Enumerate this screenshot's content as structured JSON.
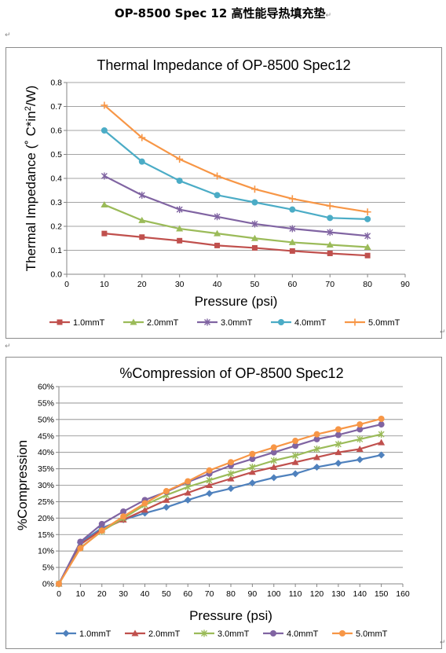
{
  "document": {
    "title": "OP-8500 Spec 12  高性能导热填充垫",
    "paragraph_mark": "↵"
  },
  "chart_data": [
    {
      "type": "line",
      "title": "Thermal Impedance of OP-8500 Spec12",
      "xlabel": "Pressure (psi)",
      "ylabel_parts": [
        "Thermal Impedance (˚ C*in",
        "2",
        "/W)"
      ],
      "xlim": [
        0,
        90
      ],
      "ylim": [
        0,
        0.8
      ],
      "x_ticks": [
        "0",
        "10",
        "20",
        "30",
        "40",
        "50",
        "60",
        "70",
        "80",
        "90"
      ],
      "y_ticks": [
        "0.0",
        "0.1",
        "0.2",
        "0.3",
        "0.4",
        "0.5",
        "0.6",
        "0.7",
        "0.8"
      ],
      "grid": true,
      "legend": "bottom",
      "x": [
        10,
        20,
        30,
        40,
        50,
        60,
        70,
        80
      ],
      "series": [
        {
          "name": "1.0mmT",
          "color": "#C0504D",
          "marker": "square",
          "values": [
            0.17,
            0.155,
            0.14,
            0.12,
            0.11,
            0.097,
            0.087,
            0.078
          ]
        },
        {
          "name": "2.0mmT",
          "color": "#9BBB59",
          "marker": "triangle",
          "values": [
            0.29,
            0.225,
            0.19,
            0.17,
            0.15,
            0.133,
            0.123,
            0.113
          ]
        },
        {
          "name": "3.0mmT",
          "color": "#8064A2",
          "marker": "star",
          "values": [
            0.41,
            0.33,
            0.27,
            0.24,
            0.21,
            0.19,
            0.175,
            0.16
          ]
        },
        {
          "name": "4.0mmT",
          "color": "#4BACC6",
          "marker": "circle",
          "values": [
            0.6,
            0.47,
            0.39,
            0.33,
            0.3,
            0.27,
            0.235,
            0.23
          ]
        },
        {
          "name": "5.0mmT",
          "color": "#F79646",
          "marker": "plus",
          "values": [
            0.705,
            0.57,
            0.48,
            0.41,
            0.355,
            0.315,
            0.285,
            0.26
          ]
        }
      ]
    },
    {
      "type": "line",
      "title": "%Compression of OP-8500 Spec12",
      "xlabel": "Pressure (psi)",
      "ylabel_parts": [
        "%Compression"
      ],
      "xlim": [
        0,
        160
      ],
      "ylim": [
        0,
        60
      ],
      "x_ticks": [
        "0",
        "10",
        "20",
        "30",
        "40",
        "50",
        "60",
        "70",
        "80",
        "90",
        "100",
        "110",
        "120",
        "130",
        "140",
        "150",
        "160"
      ],
      "y_ticks": [
        "0%",
        "5%",
        "10%",
        "15%",
        "20%",
        "25%",
        "30%",
        "35%",
        "40%",
        "45%",
        "50%",
        "55%",
        "60%"
      ],
      "grid": true,
      "legend": "bottom",
      "x": [
        0,
        10,
        20,
        30,
        40,
        50,
        60,
        70,
        80,
        90,
        100,
        110,
        120,
        130,
        140,
        150
      ],
      "series": [
        {
          "name": "1.0mmT",
          "color": "#4F81BD",
          "marker": "diamond",
          "values": [
            0,
            12.5,
            17,
            19.5,
            21.5,
            23.3,
            25.5,
            27.5,
            29,
            30.7,
            32.3,
            33.5,
            35.5,
            36.7,
            37.8,
            39.2
          ]
        },
        {
          "name": "2.0mmT",
          "color": "#C0504D",
          "marker": "triangle",
          "values": [
            0,
            12,
            16.5,
            19.5,
            22.5,
            25.5,
            27.7,
            30,
            32,
            34,
            35.5,
            37,
            38.5,
            40,
            41,
            43
          ]
        },
        {
          "name": "3.0mmT",
          "color": "#9BBB59",
          "marker": "star",
          "values": [
            0,
            11,
            16,
            20,
            24,
            27,
            29.5,
            31.5,
            33.5,
            35.5,
            37.5,
            39,
            41,
            42.5,
            44,
            45.5
          ]
        },
        {
          "name": "4.0mmT",
          "color": "#8064A2",
          "marker": "circle",
          "values": [
            0,
            12.8,
            18.2,
            22,
            25.5,
            28,
            31,
            33.5,
            36,
            38,
            40,
            42,
            44,
            45.3,
            47,
            48.5
          ]
        },
        {
          "name": "5.0mmT",
          "color": "#F79646",
          "marker": "circle",
          "values": [
            0,
            10.8,
            16.2,
            20.5,
            24.5,
            28.2,
            31.2,
            34.5,
            37,
            39.5,
            41.5,
            43.5,
            45.5,
            47,
            48.5,
            50.2
          ]
        }
      ]
    }
  ]
}
